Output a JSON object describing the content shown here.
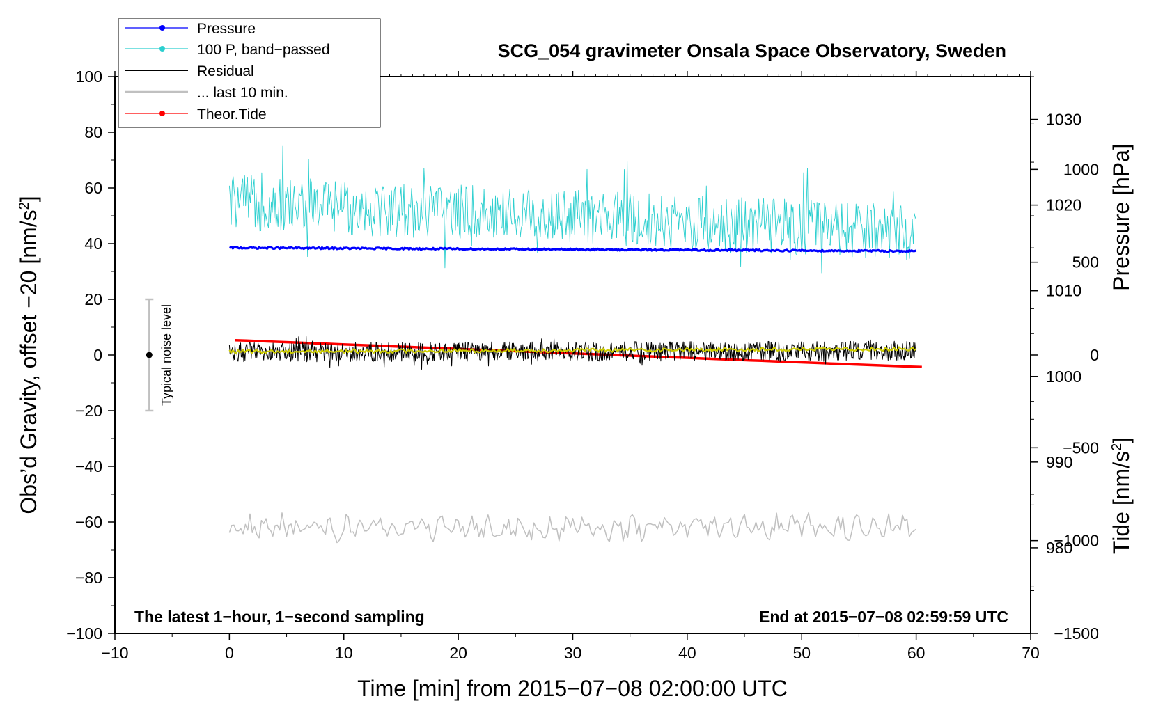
{
  "chart_data": {
    "type": "line",
    "title": "SCG_054 gravimeter Onsala Space Observatory, Sweden",
    "xlabel": "Time [min] from 2015−07−08 02:00:00 UTC",
    "ylabel_left": "Obs’d Gravity, offset −20 [nm/s",
    "ylabel_left_sup": "2",
    "ylabel_left_end": "]",
    "ylabel_pressure": "Pressure [hPa]",
    "ylabel_tide": "Tide [nm/s",
    "ylabel_tide_sup": "2",
    "ylabel_tide_end": "]",
    "xlim": [
      -10,
      70
    ],
    "ylim_left": [
      -100,
      100
    ],
    "pressure_ylim": [
      970,
      1035
    ],
    "tide_ylim": [
      -1500,
      1500
    ],
    "x_ticks": [
      -10,
      0,
      10,
      20,
      30,
      40,
      50,
      60,
      70
    ],
    "x_tick_labels": [
      "−10",
      "0",
      "10",
      "20",
      "30",
      "40",
      "50",
      "60",
      "70"
    ],
    "y_ticks_left": [
      100,
      80,
      60,
      40,
      20,
      0,
      -20,
      -40,
      -60,
      -80,
      -100
    ],
    "y_tick_labels_left": [
      "100",
      "80",
      "60",
      "40",
      "20",
      "0",
      "−20",
      "−40",
      "−60",
      "−80",
      "−100"
    ],
    "pressure_ticks": [
      1030,
      1020,
      1010,
      1000,
      990,
      980
    ],
    "pressure_tick_labels": [
      "1030",
      "1020",
      "1010",
      "1000",
      "990",
      "980"
    ],
    "tide_ticks": [
      1000,
      500,
      0,
      -500,
      -1000,
      -1500
    ],
    "tide_tick_labels": [
      "1000",
      "500",
      "0",
      "−500",
      "−1000",
      "−1500"
    ],
    "annotation_left": "The latest 1−hour, 1−second sampling",
    "annotation_right": "End at 2015−07−08 02:59:59 UTC",
    "noise_label": "Typical noise level",
    "noise_bar": {
      "x": -7,
      "center": 0,
      "low": -20,
      "high": 20
    },
    "legend_position": "top-left",
    "legend": [
      {
        "label": "Pressure",
        "color": "#0000ff",
        "marker": true
      },
      {
        "label": "100 P, band−passed",
        "color": "#2ccfcf",
        "marker": true
      },
      {
        "label": "Residual",
        "color": "#000000",
        "marker": false
      },
      {
        "label": "... last 10 min.",
        "color": "#c0c0c0",
        "marker": false
      },
      {
        "label": "Theor.Tide",
        "color": "#ff0000",
        "marker": true
      }
    ],
    "series": [
      {
        "name": "Pressure",
        "axis": "left",
        "color": "#0000ff",
        "x_range": [
          0,
          60
        ],
        "y_start": 38.5,
        "y_end": 37.3,
        "noise_amp": 0.3
      },
      {
        "name": "100 P, band−passed",
        "axis": "left",
        "color": "#2ccfcf",
        "x_range": [
          0,
          60
        ],
        "y_start": 55,
        "y_end": 44,
        "noise_amp": 10
      },
      {
        "name": "Residual",
        "axis": "left",
        "color": "#000000",
        "x_range": [
          0,
          60
        ],
        "y_start": 1,
        "y_end": 1.5,
        "noise_amp": 3.5
      },
      {
        "name": "Residual (smoothed)",
        "axis": "left",
        "color": "#cccc00",
        "x_range": [
          0,
          60
        ],
        "y_start": 1.2,
        "y_end": 2.2,
        "noise_amp": 0.7
      },
      {
        "name": "... last 10 min.",
        "axis": "left",
        "color": "#c0c0c0",
        "x_range": [
          0,
          60
        ],
        "y_start": -62,
        "y_end": -62,
        "noise_amp": 4.5
      },
      {
        "name": "Theor.Tide",
        "axis": "tide",
        "color": "#ff0000",
        "x_range": [
          0.5,
          60.5
        ],
        "y_start": 80,
        "y_end": -65,
        "noise_amp": 0
      }
    ]
  }
}
